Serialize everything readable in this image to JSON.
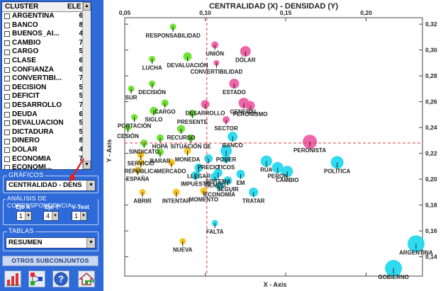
{
  "cluster_list": {
    "header_name": "CLUSTER",
    "header_count": "ELE",
    "items": [
      {
        "name": "ARGENTINA",
        "count": "6"
      },
      {
        "name": "BANCO",
        "count": "8"
      },
      {
        "name": "BUENOS_AI...",
        "count": "4"
      },
      {
        "name": "CAMBIO",
        "count": "7"
      },
      {
        "name": "CARGO",
        "count": "5"
      },
      {
        "name": "CLASE",
        "count": "6"
      },
      {
        "name": "CONFIANZA",
        "count": "6"
      },
      {
        "name": "CONVERTIBI...",
        "count": "7"
      },
      {
        "name": "DECISIÓN",
        "count": "5"
      },
      {
        "name": "DÉFICIT",
        "count": "5"
      },
      {
        "name": "DESARROLLO",
        "count": "7"
      },
      {
        "name": "DEUDA",
        "count": "6"
      },
      {
        "name": "DEVALUACIÓN",
        "count": "5"
      },
      {
        "name": "DICTADURA",
        "count": "5"
      },
      {
        "name": "DINERO",
        "count": "8"
      },
      {
        "name": "DÓLAR",
        "count": "4"
      },
      {
        "name": "ECONOMÍA",
        "count": "7"
      },
      {
        "name": "ECONOMÍ...",
        "count": ""
      }
    ]
  },
  "graficos": {
    "title": "GRÁFICOS",
    "selected": "CENTRALIDAD - DENS"
  },
  "correspondencia": {
    "title": "ANÁLISIS DE CORRESPONDENCIA",
    "eje_x_label": "Eje X",
    "eje_y_label": "Eje Y",
    "vtest_label": "V-Test",
    "eje_x_value": "1",
    "eje_y_value": "4",
    "vtest_value": "1"
  },
  "tablas": {
    "title": "TABLAS",
    "selected": "RESUMEN"
  },
  "otros_button": "OTROS SUBCONJUNTOS",
  "toolbar_icons": [
    "chart-icon",
    "network-icon",
    "help-icon",
    "home-icon"
  ],
  "colors": {
    "panel_blue": "#2f6bd8",
    "green": "#66e22a",
    "pink": "#ee5ea3",
    "yellow": "#f5c31b",
    "cyan": "#25d8ee",
    "guide_red": "#e23a3a"
  },
  "chart_data": {
    "type": "scatter",
    "title": "CENTRALIDAD (X)  - DENSIDAD (Y)",
    "xlabel": "X - Axis",
    "ylabel": "Y - Axis",
    "xlim": [
      0.05,
      0.235
    ],
    "ylim": [
      0.125,
      0.325
    ],
    "x_ticks": [
      "0,05",
      "0,10",
      "0,15",
      "0,20"
    ],
    "x_tick_values": [
      0.05,
      0.1,
      0.15,
      0.2
    ],
    "y_ticks": [
      "0,32",
      "0,30",
      "0,28",
      "0,26",
      "0,24",
      "0,22",
      "0,20",
      "0,18",
      "0,16",
      "0,14"
    ],
    "y_tick_values": [
      0.32,
      0.3,
      0.28,
      0.26,
      0.24,
      0.22,
      0.2,
      0.18,
      0.16,
      0.14
    ],
    "reference_lines": {
      "x": 0.101,
      "y": 0.228
    },
    "points": [
      {
        "label": "RESPONSABILIDAD",
        "x": 0.08,
        "y": 0.318,
        "size": 0.9,
        "color": "green"
      },
      {
        "label": "UNIÓN",
        "x": 0.106,
        "y": 0.304,
        "size": 1.0,
        "color": "pink"
      },
      {
        "label": "DÓLAR",
        "x": 0.125,
        "y": 0.299,
        "size": 1.5,
        "color": "pink"
      },
      {
        "label": "LUCHA",
        "x": 0.067,
        "y": 0.293,
        "size": 0.9,
        "color": "green"
      },
      {
        "label": "DEVALUACIÓN",
        "x": 0.089,
        "y": 0.295,
        "size": 1.2,
        "color": "green"
      },
      {
        "label": "CONVERTIBILIDAD",
        "x": 0.107,
        "y": 0.29,
        "size": 0.8,
        "color": "pink"
      },
      {
        "label": "ESTADO",
        "x": 0.118,
        "y": 0.274,
        "size": 1.4,
        "color": "pink"
      },
      {
        "label": "DECISIÓN",
        "x": 0.067,
        "y": 0.274,
        "size": 0.9,
        "color": "green"
      },
      {
        "label": "SUR",
        "x": 0.054,
        "y": 0.27,
        "size": 0.9,
        "color": "green"
      },
      {
        "label": "GENERAL",
        "x": 0.124,
        "y": 0.259,
        "size": 1.5,
        "color": "pink"
      },
      {
        "label": "PERONISMO",
        "x": 0.128,
        "y": 0.257,
        "size": 1.3,
        "color": "pink"
      },
      {
        "label": "CARGO",
        "x": 0.075,
        "y": 0.259,
        "size": 1.0,
        "color": "green"
      },
      {
        "label": "DESARROLLO",
        "x": 0.1,
        "y": 0.258,
        "size": 1.2,
        "color": "pink"
      },
      {
        "label": "SIGLO",
        "x": 0.068,
        "y": 0.253,
        "size": 1.1,
        "color": "green"
      },
      {
        "label": "PRESENTE",
        "x": 0.092,
        "y": 0.251,
        "size": 1.0,
        "color": "green"
      },
      {
        "label": "SECTOR",
        "x": 0.113,
        "y": 0.246,
        "size": 1.0,
        "color": "pink"
      },
      {
        "label": "PORTACIÓN",
        "x": 0.056,
        "y": 0.248,
        "size": 0.9,
        "color": "green"
      },
      {
        "label": "RECURSO",
        "x": 0.085,
        "y": 0.239,
        "size": 1.1,
        "color": "green"
      },
      {
        "label": "CESIÓN",
        "x": 0.052,
        "y": 0.24,
        "size": 0.9,
        "color": "green"
      },
      {
        "label": "BANCO",
        "x": 0.117,
        "y": 0.233,
        "size": 1.4,
        "color": "cyan"
      },
      {
        "label": "PERONISTA",
        "x": 0.165,
        "y": 0.229,
        "size": 2.0,
        "color": "pink"
      },
      {
        "label": "HOPA",
        "x": 0.072,
        "y": 0.232,
        "size": 1.0,
        "color": "green"
      },
      {
        "label": "SINDICATO",
        "x": 0.062,
        "y": 0.228,
        "size": 1.0,
        "color": "green"
      },
      {
        "label": "SITUACIÓN DE",
        "x": 0.091,
        "y": 0.232,
        "size": 1.0,
        "color": "green"
      },
      {
        "label": "PODER",
        "x": 0.113,
        "y": 0.222,
        "size": 1.6,
        "color": "cyan"
      },
      {
        "label": "SERVICIO",
        "x": 0.06,
        "y": 0.219,
        "size": 1.0,
        "color": "yellow"
      },
      {
        "label": "BARAR",
        "x": 0.072,
        "y": 0.221,
        "size": 1.0,
        "color": "green"
      },
      {
        "label": "MONEDA",
        "x": 0.089,
        "y": 0.222,
        "size": 1.0,
        "color": "yellow"
      },
      {
        "label": "RÚA",
        "x": 0.138,
        "y": 0.214,
        "size": 1.6,
        "color": "cyan"
      },
      {
        "label": "PRECIO",
        "x": 0.102,
        "y": 0.216,
        "size": 1.2,
        "color": "cyan"
      },
      {
        "label": "TICOS",
        "x": 0.113,
        "y": 0.216,
        "size": 1.2,
        "color": "cyan"
      },
      {
        "label": "REPÚBLICA",
        "x": 0.06,
        "y": 0.213,
        "size": 1.0,
        "color": "yellow"
      },
      {
        "label": "MERCADO",
        "x": 0.079,
        "y": 0.213,
        "size": 1.0,
        "color": "yellow"
      },
      {
        "label": "PERÓN",
        "x": 0.145,
        "y": 0.209,
        "size": 1.6,
        "color": "cyan"
      },
      {
        "label": "POLÍTICA",
        "x": 0.182,
        "y": 0.213,
        "size": 1.8,
        "color": "cyan"
      },
      {
        "label": "ESPAÑA",
        "x": 0.058,
        "y": 0.207,
        "size": 1.0,
        "color": "yellow"
      },
      {
        "label": "LLEGAR",
        "x": 0.096,
        "y": 0.209,
        "size": 1.2,
        "color": "cyan"
      },
      {
        "label": "SISTEMA",
        "x": 0.108,
        "y": 0.205,
        "size": 1.2,
        "color": "cyan"
      },
      {
        "label": "IMPUESTO",
        "x": 0.094,
        "y": 0.203,
        "size": 1.2,
        "color": "cyan"
      },
      {
        "label": "TIEMPO",
        "x": 0.106,
        "y": 0.202,
        "size": 1.2,
        "color": "cyan"
      },
      {
        "label": "EM",
        "x": 0.122,
        "y": 0.204,
        "size": 1.2,
        "color": "cyan"
      },
      {
        "label": "CAMBIO",
        "x": 0.151,
        "y": 0.206,
        "size": 1.6,
        "color": "cyan"
      },
      {
        "label": "SEGUIR",
        "x": 0.114,
        "y": 0.199,
        "size": 1.2,
        "color": "cyan"
      },
      {
        "label": "ECONOMÍA",
        "x": 0.109,
        "y": 0.195,
        "size": 1.2,
        "color": "cyan"
      },
      {
        "label": "ABRIR",
        "x": 0.061,
        "y": 0.19,
        "size": 0.9,
        "color": "yellow"
      },
      {
        "label": "INTENTAR",
        "x": 0.082,
        "y": 0.19,
        "size": 1.0,
        "color": "yellow"
      },
      {
        "label": "MOMENTO",
        "x": 0.099,
        "y": 0.191,
        "size": 1.0,
        "color": "yellow"
      },
      {
        "label": "TRATAR",
        "x": 0.13,
        "y": 0.19,
        "size": 1.3,
        "color": "cyan"
      },
      {
        "label": "FALTA",
        "x": 0.106,
        "y": 0.166,
        "size": 0.9,
        "color": "cyan"
      },
      {
        "label": "NUEVA",
        "x": 0.086,
        "y": 0.152,
        "size": 0.9,
        "color": "yellow"
      },
      {
        "label": "ARGENTINA",
        "x": 0.231,
        "y": 0.15,
        "size": 2.4,
        "color": "cyan"
      },
      {
        "label": "GOBIERNO",
        "x": 0.217,
        "y": 0.131,
        "size": 2.4,
        "color": "cyan"
      }
    ]
  }
}
